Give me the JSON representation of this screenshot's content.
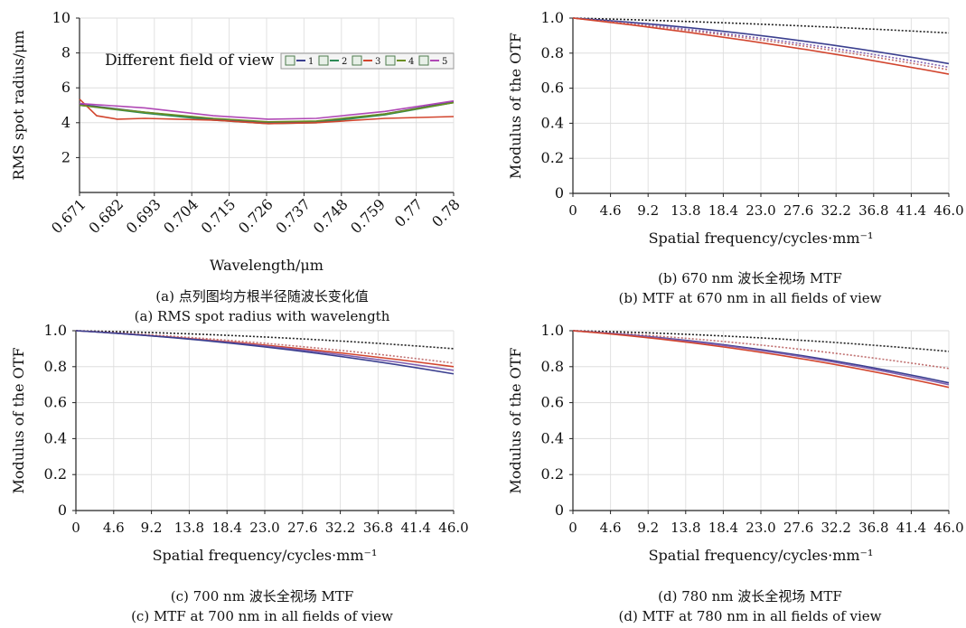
{
  "chart_data": [
    {
      "id": "a",
      "type": "line",
      "caption_cn": "(a) 点列图均方根半径随波长变化值",
      "caption_en": "(a) RMS spot radius with wavelength",
      "xlabel": "Wavelength/μm",
      "ylabel": "RMS spot radius/μm",
      "x_ticks": [
        "0.671",
        "0.682",
        "0.693",
        "0.704",
        "0.715",
        "0.726",
        "0.737",
        "0.748",
        "0.759",
        "0.77",
        "0.78"
      ],
      "y_ticks": [
        "2",
        "4",
        "6",
        "8",
        "10"
      ],
      "xlim": [
        0.671,
        0.78
      ],
      "ylim": [
        0,
        10
      ],
      "grid": true,
      "legend_title": "Different field of view",
      "legend_position": "top-right",
      "series": [
        {
          "name": "1",
          "color": "#3a3f8f",
          "x": [
            0.671,
            0.69,
            0.71,
            0.726,
            0.74,
            0.76,
            0.78
          ],
          "y": [
            5.05,
            4.6,
            4.2,
            4.0,
            4.05,
            4.5,
            5.2
          ]
        },
        {
          "name": "2",
          "color": "#2e8b57",
          "x": [
            0.671,
            0.69,
            0.71,
            0.726,
            0.74,
            0.76,
            0.78
          ],
          "y": [
            5.0,
            4.55,
            4.15,
            3.95,
            4.0,
            4.45,
            5.15
          ]
        },
        {
          "name": "3",
          "color": "#d2452e",
          "x": [
            0.671,
            0.676,
            0.682,
            0.69,
            0.71,
            0.726,
            0.74,
            0.76,
            0.78
          ],
          "y": [
            5.35,
            4.4,
            4.2,
            4.25,
            4.15,
            3.95,
            4.0,
            4.25,
            4.35
          ]
        },
        {
          "name": "4",
          "color": "#6b8e23",
          "x": [
            0.671,
            0.69,
            0.71,
            0.726,
            0.74,
            0.76,
            0.78
          ],
          "y": [
            5.0,
            4.6,
            4.25,
            4.05,
            4.1,
            4.5,
            5.15
          ]
        },
        {
          "name": "5",
          "color": "#b048b5",
          "x": [
            0.671,
            0.69,
            0.71,
            0.726,
            0.74,
            0.76,
            0.78
          ],
          "y": [
            5.1,
            4.85,
            4.4,
            4.2,
            4.25,
            4.65,
            5.25
          ]
        }
      ]
    },
    {
      "id": "b",
      "type": "line",
      "caption_cn": "(b) 670 nm 波长全视场 MTF",
      "caption_en": "(b) MTF at 670 nm in all fields of view",
      "xlabel": "Spatial frequency/cycles·mm⁻¹",
      "ylabel": "Modulus of the OTF",
      "x_ticks": [
        "0",
        "4.6",
        "9.2",
        "13.8",
        "18.4",
        "23.0",
        "27.6",
        "32.2",
        "36.8",
        "41.4",
        "46.0"
      ],
      "y_ticks": [
        "0",
        "0.2",
        "0.4",
        "0.6",
        "0.8",
        "1.0"
      ],
      "xlim": [
        0,
        46
      ],
      "ylim": [
        0,
        1
      ],
      "grid": true,
      "series": [
        {
          "color": "#222222",
          "dashed": true,
          "x": [
            0,
            23,
            46
          ],
          "y": [
            1.0,
            0.965,
            0.915
          ]
        },
        {
          "color": "#3a3f8f",
          "x": [
            0,
            23,
            46
          ],
          "y": [
            1.0,
            0.9,
            0.74
          ]
        },
        {
          "color": "#8060b0",
          "dashed": true,
          "x": [
            0,
            23,
            46
          ],
          "y": [
            1.0,
            0.885,
            0.72
          ]
        },
        {
          "color": "#c07070",
          "dashed": true,
          "x": [
            0,
            23,
            46
          ],
          "y": [
            1.0,
            0.875,
            0.705
          ]
        },
        {
          "color": "#d2452e",
          "x": [
            0,
            23,
            46
          ],
          "y": [
            1.0,
            0.86,
            0.68
          ]
        }
      ]
    },
    {
      "id": "c",
      "type": "line",
      "caption_cn": "(c) 700 nm 波长全视场 MTF",
      "caption_en": "(c) MTF at 700 nm in all fields of view",
      "xlabel": "Spatial frequency/cycles·mm⁻¹",
      "ylabel": "Modulus of the OTF",
      "x_ticks": [
        "0",
        "4.6",
        "9.2",
        "13.8",
        "18.4",
        "23.0",
        "27.6",
        "32.2",
        "36.8",
        "41.4",
        "46.0"
      ],
      "y_ticks": [
        "0",
        "0.2",
        "0.4",
        "0.6",
        "0.8",
        "1.0"
      ],
      "xlim": [
        0,
        46
      ],
      "ylim": [
        0,
        1
      ],
      "grid": true,
      "series": [
        {
          "color": "#222222",
          "dashed": true,
          "x": [
            0,
            23,
            46
          ],
          "y": [
            1.0,
            0.965,
            0.9
          ]
        },
        {
          "color": "#c07070",
          "dashed": true,
          "x": [
            0,
            23,
            46
          ],
          "y": [
            1.0,
            0.93,
            0.82
          ]
        },
        {
          "color": "#d2452e",
          "x": [
            0,
            23,
            46
          ],
          "y": [
            1.0,
            0.92,
            0.8
          ]
        },
        {
          "color": "#8060b0",
          "x": [
            0,
            23,
            46
          ],
          "y": [
            1.0,
            0.915,
            0.78
          ]
        },
        {
          "color": "#3a3f8f",
          "x": [
            0,
            23,
            46
          ],
          "y": [
            1.0,
            0.91,
            0.76
          ]
        }
      ]
    },
    {
      "id": "d",
      "type": "line",
      "caption_cn": "(d) 780 nm 波长全视场 MTF",
      "caption_en": "(d) MTF at 780 nm in all fields of view",
      "xlabel": "Spatial frequency/cycles·mm⁻¹",
      "ylabel": "Modulus of the OTF",
      "x_ticks": [
        "0",
        "4.6",
        "9.2",
        "13.8",
        "18.4",
        "23.0",
        "27.6",
        "32.2",
        "36.8",
        "41.4",
        "46.0"
      ],
      "y_ticks": [
        "0",
        "0.2",
        "0.4",
        "0.6",
        "0.8",
        "1.0"
      ],
      "xlim": [
        0,
        46
      ],
      "ylim": [
        0,
        1
      ],
      "grid": true,
      "series": [
        {
          "color": "#222222",
          "dashed": true,
          "x": [
            0,
            23,
            46
          ],
          "y": [
            1.0,
            0.96,
            0.885
          ]
        },
        {
          "color": "#c07070",
          "dashed": true,
          "x": [
            0,
            23,
            46
          ],
          "y": [
            1.0,
            0.92,
            0.79
          ]
        },
        {
          "color": "#3a3f8f",
          "x": [
            0,
            23,
            46
          ],
          "y": [
            1.0,
            0.895,
            0.71
          ]
        },
        {
          "color": "#8060b0",
          "x": [
            0,
            23,
            46
          ],
          "y": [
            1.0,
            0.89,
            0.7
          ]
        },
        {
          "color": "#d2452e",
          "x": [
            0,
            23,
            46
          ],
          "y": [
            1.0,
            0.88,
            0.685
          ]
        }
      ]
    }
  ]
}
